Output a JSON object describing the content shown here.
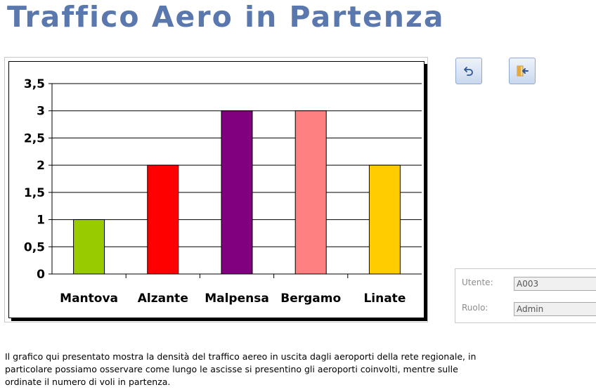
{
  "header": {
    "title": "Traffico Aero in Partenza"
  },
  "chart_data": {
    "type": "bar",
    "categories": [
      "Mantova",
      "Alzante",
      "Malpensa",
      "Bergamo",
      "Linate"
    ],
    "values": [
      1,
      2,
      3,
      3,
      2
    ],
    "colors": [
      "#99cc00",
      "#ff0000",
      "#800080",
      "#ff8080",
      "#ffcc00"
    ],
    "ylim": [
      0,
      3.5
    ],
    "yticks": [
      "0",
      "0,5",
      "1",
      "1,5",
      "2",
      "2,5",
      "3",
      "3,5"
    ],
    "grid": true,
    "legend": "none"
  },
  "toolbar": {
    "undo_icon": "undo-arrow-icon",
    "exit_icon": "exit-door-icon"
  },
  "user_panel": {
    "user_label": "Utente:",
    "user_value": "A003",
    "role_label": "Ruolo:",
    "role_value": "Admin"
  },
  "description": "Il grafico qui presentato mostra la densità del traffico aereo in uscita dagli aeroporti della rete regionale, in particolare possiamo osservare come lungo le ascisse si presentino gli aeroporti coinvolti, mentre sulle ordinate il numero di voli in partenza."
}
